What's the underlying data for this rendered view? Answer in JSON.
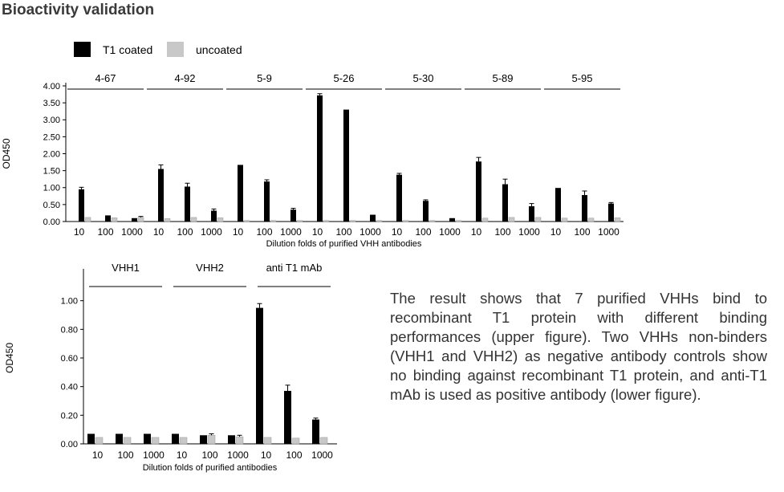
{
  "page": {
    "title": "Bioactivity validation",
    "description": "The result shows that 7 purified VHHs bind to recombinant T1 protein with different binding performances (upper figure). Two VHHs non-binders (VHH1 and VHH2) as negative antibody controls show no binding against recombinant T1 protein, and anti-T1 mAb is used as positive antibody (lower figure)."
  },
  "legend": [
    {
      "label": "T1 coated",
      "color": "#000000"
    },
    {
      "label": "uncoated",
      "color": "#c8c8c8"
    }
  ],
  "chart_data": [
    {
      "type": "bar",
      "title": "",
      "xlabel": "Dilution folds of purified VHH antibodies",
      "ylabel": "OD450",
      "ylim": [
        0,
        4
      ],
      "yticks": [
        "0.00",
        "0.50",
        "1.00",
        "1.50",
        "2.00",
        "2.50",
        "3.00",
        "3.50",
        "4.00"
      ],
      "tick_values": [
        0,
        0.5,
        1,
        1.5,
        2,
        2.5,
        3,
        3.5,
        4
      ],
      "groups": [
        "4-67",
        "4-92",
        "5-9",
        "5-26",
        "5-30",
        "5-89",
        "5-95"
      ],
      "categories": [
        "10",
        "100",
        "1000"
      ],
      "series": [
        {
          "name": "T1 coated",
          "color": "#000000",
          "values": [
            [
              0.95,
              0.18,
              0.1
            ],
            [
              1.55,
              1.03,
              0.32
            ],
            [
              1.67,
              1.18,
              0.35
            ],
            [
              3.72,
              3.3,
              0.2
            ],
            [
              1.38,
              0.61,
              0.1
            ],
            [
              1.77,
              1.1,
              0.45
            ],
            [
              0.99,
              0.78,
              0.53
            ]
          ],
          "errors": [
            [
              0.06,
              0.0,
              0.0
            ],
            [
              0.12,
              0.1,
              0.05
            ],
            [
              0.0,
              0.05,
              0.04
            ],
            [
              0.05,
              0.0,
              0.0
            ],
            [
              0.04,
              0.03,
              0.0
            ],
            [
              0.12,
              0.15,
              0.08
            ],
            [
              0.0,
              0.12,
              0.03
            ]
          ]
        },
        {
          "name": "uncoated",
          "color": "#c8c8c8",
          "values": [
            [
              0.12,
              0.11,
              0.12
            ],
            [
              0.09,
              0.12,
              0.11
            ],
            [
              0.03,
              0.03,
              0.03
            ],
            [
              0.03,
              0.03,
              0.03
            ],
            [
              0.03,
              0.03,
              0.03
            ],
            [
              0.1,
              0.12,
              0.12
            ],
            [
              0.1,
              0.1,
              0.11
            ]
          ],
          "errors": [
            [
              0.0,
              0.0,
              0.03
            ],
            [
              0.0,
              0.0,
              0.0
            ],
            [
              0.0,
              0.0,
              0.0
            ],
            [
              0.0,
              0.0,
              0.0
            ],
            [
              0.0,
              0.0,
              0.0
            ],
            [
              0.0,
              0.0,
              0.0
            ],
            [
              0.0,
              0.0,
              0.0
            ]
          ]
        }
      ]
    },
    {
      "type": "bar",
      "title": "",
      "xlabel": "Dilution folds of purified antibodies",
      "ylabel": "OD450",
      "ylim": [
        0,
        1.2
      ],
      "yticks": [
        "0.00",
        "0.20",
        "0.40",
        "0.60",
        "0.80",
        "1.00"
      ],
      "tick_values": [
        0,
        0.2,
        0.4,
        0.6,
        0.8,
        1.0
      ],
      "groups": [
        "VHH1",
        "VHH2",
        "anti T1 mAb"
      ],
      "categories": [
        "10",
        "100",
        "1000"
      ],
      "series": [
        {
          "name": "T1 coated",
          "color": "#000000",
          "values": [
            [
              0.07,
              0.07,
              0.07
            ],
            [
              0.07,
              0.06,
              0.06
            ],
            [
              0.95,
              0.37,
              0.17
            ]
          ],
          "errors": [
            [
              0.0,
              0.0,
              0.0
            ],
            [
              0.0,
              0.0,
              0.0
            ],
            [
              0.03,
              0.04,
              0.01
            ]
          ]
        },
        {
          "name": "uncoated",
          "color": "#c8c8c8",
          "values": [
            [
              0.045,
              0.045,
              0.045
            ],
            [
              0.045,
              0.06,
              0.05
            ],
            [
              0.045,
              0.04,
              0.045
            ]
          ],
          "errors": [
            [
              0.0,
              0.0,
              0.0
            ],
            [
              0.0,
              0.01,
              0.01
            ],
            [
              0.0,
              0.0,
              0.0
            ]
          ]
        }
      ]
    }
  ]
}
